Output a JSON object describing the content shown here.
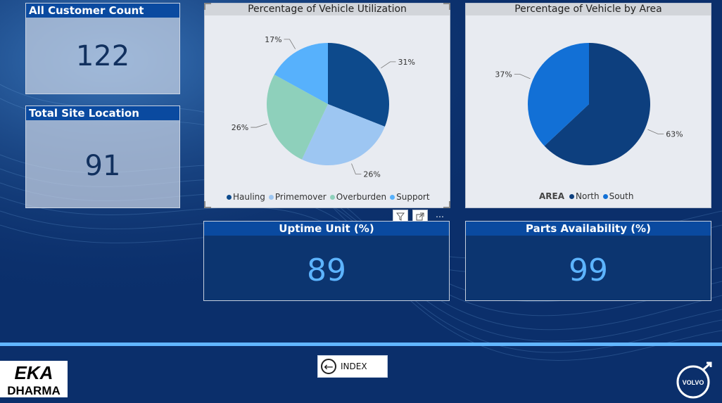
{
  "colors": {
    "background": "#0b2f6b",
    "header": "#0a4aa0",
    "kpi_value": "#5db4ff",
    "divider": "#62b6ff"
  },
  "kpis": {
    "customer_count": {
      "label": "All Customer Count",
      "value": "122"
    },
    "site_location": {
      "label": "Total Site Location",
      "value": "91"
    },
    "uptime": {
      "label": "Uptime Unit (%)",
      "value": "89"
    },
    "parts": {
      "label": "Parts Availability (%)",
      "value": "99"
    }
  },
  "chart_data": [
    {
      "type": "pie",
      "title": "Percentage of Vehicle Utilization",
      "series": [
        {
          "name": "Hauling",
          "value": 31,
          "label": "31%",
          "color": "#0d4a8c"
        },
        {
          "name": "Primemover",
          "value": 26,
          "label": "26%",
          "color": "#9dc6f2"
        },
        {
          "name": "Overburden",
          "value": 26,
          "label": "26%",
          "color": "#8ed0bb"
        },
        {
          "name": "Support",
          "value": 17,
          "label": "17%",
          "color": "#57b1fc"
        }
      ],
      "legend_title": ""
    },
    {
      "type": "pie",
      "title": "Percentage of Vehicle by Area",
      "series": [
        {
          "name": "North",
          "value": 63,
          "label": "63%",
          "color": "#0d3f7e"
        },
        {
          "name": "South",
          "value": 37,
          "label": "37%",
          "color": "#1270d6"
        }
      ],
      "legend_title": "AREA"
    }
  ],
  "visual_toolbar": {
    "filter_icon": "filter-icon",
    "focus_icon": "focus-mode-icon",
    "more_icon": "more-options-icon"
  },
  "nav": {
    "index_label": "INDEX",
    "index_icon": "back-arrow-icon"
  },
  "logos": {
    "left": "EKA DHARMA",
    "right": "VOLVO"
  }
}
